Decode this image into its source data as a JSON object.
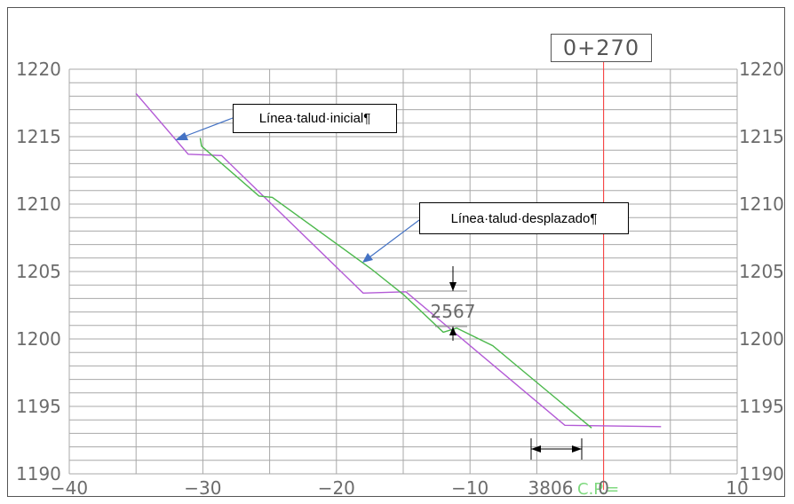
{
  "station_label": "0+270",
  "annotations": {
    "initial_slope": "Línea·talud·inicial¶",
    "shifted_slope": "Línea·talud·desplazado¶",
    "vertical_offset": "2567",
    "horizontal_offset": "3806",
    "cp_label": "C.P.="
  },
  "chart_data": {
    "type": "line",
    "title": "",
    "xlabel": "",
    "ylabel": "",
    "xlim": [
      -40,
      10
    ],
    "ylim": [
      1190,
      1220
    ],
    "x_ticks": [
      "−40",
      "−30",
      "−20",
      "−10",
      "0",
      "10"
    ],
    "y_ticks": [
      "1190",
      "1195",
      "1200",
      "1205",
      "1210",
      "1215",
      "1220"
    ],
    "grid": true,
    "series": [
      {
        "id": "initial",
        "color": "#b35ad6",
        "points": [
          [
            -35,
            1218.2
          ],
          [
            -31.1,
            1213.7
          ],
          [
            -28.6,
            1213.6
          ],
          [
            -18,
            1203.4
          ],
          [
            -14.8,
            1203.5
          ],
          [
            -2.9,
            1193.6
          ],
          [
            4.3,
            1193.5
          ]
        ]
      },
      {
        "id": "shifted",
        "color": "#4cb84c",
        "points": [
          [
            -30.2,
            1214.9
          ],
          [
            -30.1,
            1214.3
          ],
          [
            -25.8,
            1210.6
          ],
          [
            -24.8,
            1210.5
          ],
          [
            -17.4,
            1205.2
          ],
          [
            -15,
            1203.3
          ],
          [
            -12,
            1200.5
          ],
          [
            -11,
            1200.8
          ],
          [
            -8.3,
            1199.5
          ],
          [
            -6,
            1197.6
          ],
          [
            -0.9,
            1193.4
          ]
        ]
      }
    ],
    "cp_line": {
      "x": 0,
      "color": "#ff3b3b"
    }
  },
  "colors": {
    "grid": "#a8a8a8",
    "axis_text": "#6b6b6b",
    "dimension": "#000000",
    "cp_text": "#7fd97f",
    "arrow": "#4472c4"
  }
}
